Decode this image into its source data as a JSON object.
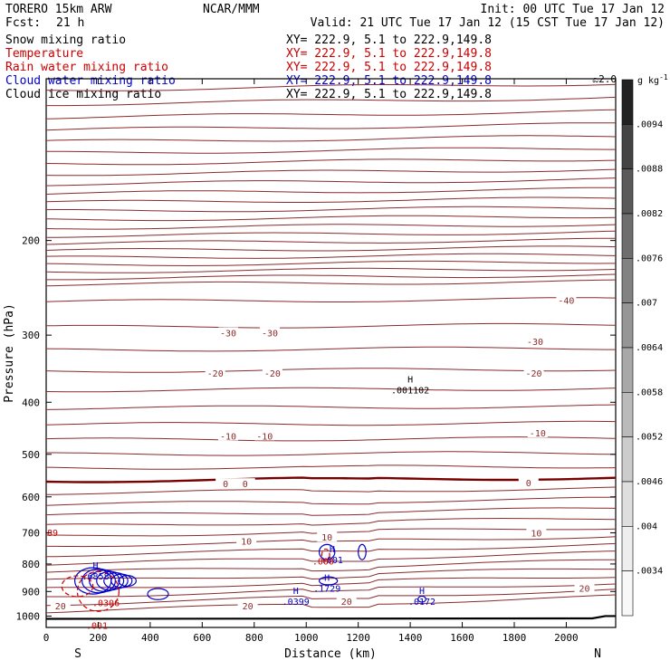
{
  "header": {
    "model": "TORERO  15km ARW",
    "center": "NCAR/MMM",
    "init": "Init: 00 UTC Tue 17 Jan 12",
    "fcst_label": "Fcst:",
    "fcst_value": "21 h",
    "valid": "Valid: 21 UTC Tue 17 Jan 12 (15 CST Tue 17 Jan 12)"
  },
  "legend": [
    {
      "name": "Snow mixing ratio",
      "xy": "XY= 222.9,  5.1 to 222.9,149.8",
      "color": "#000000"
    },
    {
      "name": "Temperature",
      "xy": "XY= 222.9,  5.1 to 222.9,149.8",
      "color": "#cc0000"
    },
    {
      "name": "Rain water mixing ratio",
      "xy": "XY= 222.9,  5.1 to 222.9,149.8",
      "color": "#cc0000"
    },
    {
      "name": "Cloud water mixing ratio",
      "xy": "XY= 222.9,  5.1 to 222.9,149.8",
      "color": "#0000cc"
    },
    {
      "name": "Cloud ice mixing ratio",
      "xy": "XY= 222.9,  5.1 to 222.9,149.8",
      "color": "#000000"
    }
  ],
  "chart_data": {
    "type": "contour",
    "xlabel": "Distance (km)",
    "ylabel": "Pressure (hPa)",
    "xlim": [
      0,
      2190
    ],
    "ylim": [
      1050,
      100
    ],
    "yscale": "log",
    "x_ticks": [
      0,
      200,
      400,
      600,
      800,
      1000,
      1200,
      1400,
      1600,
      1800,
      2000
    ],
    "y_ticks": [
      200,
      300,
      400,
      500,
      600,
      700,
      800,
      900,
      1000
    ],
    "x_end_labels": {
      "left": "S",
      "right": "N"
    },
    "colorbar": {
      "unit": "g kg",
      "unit_exponent": "-1",
      "ticks": [
        ".0094",
        ".0088",
        ".0082",
        ".0076",
        ".007",
        ".0064",
        ".0058",
        ".0052",
        ".0046",
        ".004",
        ".0034"
      ],
      "palette": [
        "#222222",
        "#444444",
        "#5a5a5a",
        "#6e6e6e",
        "#828282",
        "#969696",
        "#a8a8a8",
        "#bababa",
        "#cccccc",
        "#dedede",
        "#eeeeee",
        "#f8f8f8"
      ]
    },
    "temperature_labels": [
      {
        "text": "-40",
        "x": 2000,
        "p": 258
      },
      {
        "text": "-30",
        "x": 700,
        "p": 297
      },
      {
        "text": "-30",
        "x": 860,
        "p": 297
      },
      {
        "text": "-30",
        "x": 1880,
        "p": 308
      },
      {
        "text": "-20",
        "x": 650,
        "p": 353
      },
      {
        "text": "-20",
        "x": 870,
        "p": 353
      },
      {
        "text": "-20",
        "x": 1875,
        "p": 353
      },
      {
        "text": "-10",
        "x": 700,
        "p": 462
      },
      {
        "text": "-10",
        "x": 840,
        "p": 462
      },
      {
        "text": "-10",
        "x": 1890,
        "p": 456
      },
      {
        "text": "0",
        "x": 690,
        "p": 567
      },
      {
        "text": "0",
        "x": 765,
        "p": 567
      },
      {
        "text": "0",
        "x": 1855,
        "p": 564
      },
      {
        "text": "10",
        "x": 770,
        "p": 725
      },
      {
        "text": "10",
        "x": 1080,
        "p": 713
      },
      {
        "text": "10",
        "x": 1885,
        "p": 700
      },
      {
        "text": "20",
        "x": 55,
        "p": 957
      },
      {
        "text": "20",
        "x": 775,
        "p": 957
      },
      {
        "text": "20",
        "x": 1155,
        "p": 938
      },
      {
        "text": "20",
        "x": 2070,
        "p": 887
      }
    ],
    "maxima": [
      {
        "symbol": "H",
        "value": ".001102",
        "x": 1400,
        "p": 372,
        "color": "#000000"
      },
      {
        "symbol": "H",
        "value": ".6858",
        "x": 190,
        "p": 825,
        "color": "#0000cc"
      },
      {
        "symbol": "H",
        "value": ".001",
        "x": 1100,
        "p": 770,
        "color": "#0000cc"
      },
      {
        "symbol": "H",
        "value": ".1729",
        "x": 1080,
        "p": 870,
        "color": "#0000cc"
      },
      {
        "symbol": "H",
        "value": ".0399",
        "x": 960,
        "p": 920,
        "color": "#0000cc"
      },
      {
        "symbol": "H",
        "value": ".0172",
        "x": 1445,
        "p": 920,
        "color": "#0000cc"
      },
      {
        "symbol": "",
        "value": ".0306",
        "x": 230,
        "p": 925,
        "color": "#cc0000"
      },
      {
        "symbol": "",
        "value": ".001",
        "x": 195,
        "p": 1020,
        "color": "#cc0000"
      },
      {
        "symbol": "",
        "value": ".000",
        "x": 1065,
        "p": 775,
        "color": "#cc0000"
      }
    ],
    "top_right_tag": "ಎ2.0",
    "clip_label_left": "89"
  }
}
